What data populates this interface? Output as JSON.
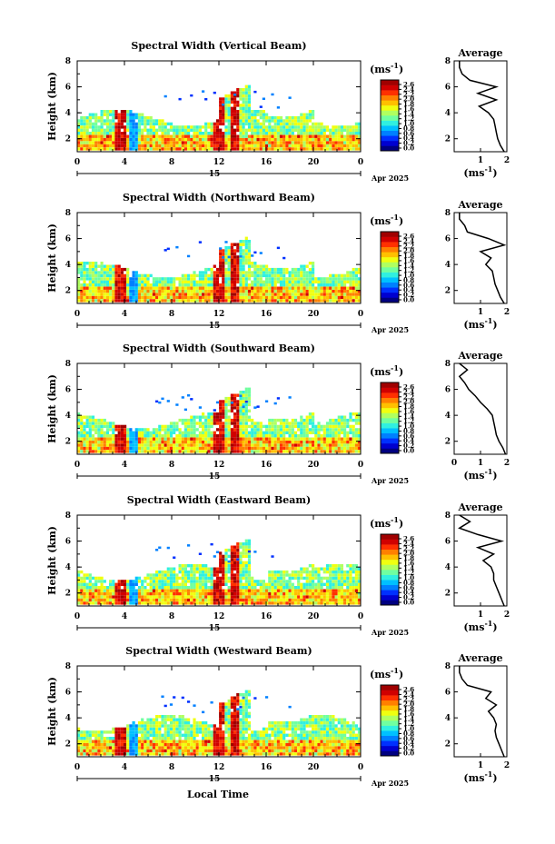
{
  "figure": {
    "xlabel": "Local Time",
    "date_label": "Apr 2025",
    "day_label": "15",
    "ylabel": "Height (km)",
    "x_ticks": [
      "0",
      "4",
      "8",
      "12",
      "16",
      "20",
      "0"
    ],
    "y_ticks": [
      "2",
      "4",
      "6",
      "8"
    ],
    "colorbar_unit": "(ms",
    "colorbar_unit_sup": "-1",
    "colorbar_unit_close": ")",
    "colorbar_ticks": [
      "2.6",
      "2.4",
      "2.2",
      "2.0",
      "1.8",
      "1.6",
      "1.4",
      "1.2",
      "1.0",
      "0.8",
      "0.6",
      "0.4",
      "0.2",
      "0.0"
    ],
    "avg_title": "Average",
    "avg_unit": "(ms",
    "avg_unit_sup": "-1",
    "avg_unit_close": ")",
    "colors": {
      "colormap": [
        "#000080",
        "#0000d0",
        "#0030ff",
        "#0080ff",
        "#00c0ff",
        "#30f0e0",
        "#70ffa0",
        "#b0ff60",
        "#f0ff10",
        "#ffc000",
        "#ff8000",
        "#ff3000",
        "#d00000",
        "#a00000"
      ],
      "missing": "#ffffff"
    }
  },
  "chart_data": [
    {
      "type": "heatmap",
      "title": "Spectral Width (Vertical Beam)",
      "x_range_hours": [
        0,
        24
      ],
      "y_range_km": [
        1,
        8
      ],
      "colorbar_range": [
        0,
        2.8
      ],
      "average_profile": {
        "title": "Average",
        "xlim": [
          0,
          2
        ],
        "x_ticks": [
          "1",
          "2"
        ],
        "height_km": [
          1.0,
          1.5,
          2.0,
          2.5,
          3.0,
          3.5,
          4.0,
          4.5,
          5.0,
          5.5,
          6.0,
          6.5,
          7.0,
          7.5,
          8.0
        ],
        "width_ms": [
          1.9,
          1.75,
          1.65,
          1.6,
          1.55,
          1.5,
          1.3,
          0.95,
          1.6,
          0.9,
          1.6,
          0.6,
          0.3,
          0.2,
          0.2
        ]
      }
    },
    {
      "type": "heatmap",
      "title": "Spectral Width (Northward Beam)",
      "x_range_hours": [
        0,
        24
      ],
      "y_range_km": [
        1,
        8
      ],
      "colorbar_range": [
        0,
        2.8
      ],
      "average_profile": {
        "title": "Average",
        "xlim": [
          0,
          2
        ],
        "x_ticks": [
          "1",
          "2"
        ],
        "height_km": [
          1.0,
          1.5,
          2.0,
          2.5,
          3.0,
          3.5,
          4.0,
          4.5,
          5.0,
          5.5,
          6.0,
          6.5,
          7.0,
          7.5,
          8.0
        ],
        "width_ms": [
          1.9,
          1.75,
          1.65,
          1.55,
          1.5,
          1.45,
          1.2,
          1.4,
          1.0,
          1.9,
          1.3,
          0.5,
          0.4,
          0.2,
          0.2
        ]
      }
    },
    {
      "type": "heatmap",
      "title": "Spectral Width (Southward Beam)",
      "x_range_hours": [
        0,
        24
      ],
      "y_range_km": [
        1,
        8
      ],
      "colorbar_range": [
        0,
        2.6
      ],
      "average_profile": {
        "title": "Average",
        "xlim": [
          0,
          2
        ],
        "x_ticks": [
          "0",
          "1",
          "2"
        ],
        "height_km": [
          1.0,
          1.5,
          2.0,
          2.5,
          3.0,
          3.5,
          4.0,
          4.5,
          5.0,
          5.5,
          6.0,
          6.5,
          7.0,
          7.5,
          8.0
        ],
        "width_ms": [
          1.95,
          1.85,
          1.7,
          1.6,
          1.55,
          1.5,
          1.45,
          1.25,
          1.0,
          0.8,
          0.55,
          0.4,
          0.2,
          0.5,
          0.2
        ]
      }
    },
    {
      "type": "heatmap",
      "title": "Spectral Width (Eastward Beam)",
      "x_range_hours": [
        0,
        24
      ],
      "y_range_km": [
        1,
        8
      ],
      "colorbar_range": [
        0,
        2.8
      ],
      "average_profile": {
        "title": "Average",
        "xlim": [
          0,
          2
        ],
        "x_ticks": [
          "1",
          "2"
        ],
        "height_km": [
          1.0,
          1.5,
          2.0,
          2.5,
          3.0,
          3.5,
          4.0,
          4.5,
          5.0,
          5.5,
          6.0,
          6.5,
          7.0,
          7.5,
          8.0
        ],
        "width_ms": [
          1.9,
          1.8,
          1.7,
          1.6,
          1.5,
          1.5,
          1.4,
          1.1,
          1.5,
          0.9,
          1.8,
          0.9,
          0.2,
          0.6,
          0.2
        ]
      }
    },
    {
      "type": "heatmap",
      "title": "Spectral Width (Westward Beam)",
      "x_range_hours": [
        0,
        24
      ],
      "y_range_km": [
        1,
        8
      ],
      "colorbar_range": [
        0,
        2.6
      ],
      "average_profile": {
        "title": "Average",
        "xlim": [
          0,
          2
        ],
        "x_ticks": [
          "1",
          "2"
        ],
        "height_km": [
          1.0,
          1.5,
          2.0,
          2.5,
          3.0,
          3.5,
          4.0,
          4.5,
          5.0,
          5.5,
          6.0,
          6.5,
          7.0,
          7.5,
          8.0
        ],
        "width_ms": [
          1.9,
          1.8,
          1.7,
          1.6,
          1.55,
          1.6,
          1.5,
          1.3,
          1.6,
          1.2,
          1.4,
          0.5,
          0.3,
          0.2,
          0.2
        ]
      }
    }
  ]
}
